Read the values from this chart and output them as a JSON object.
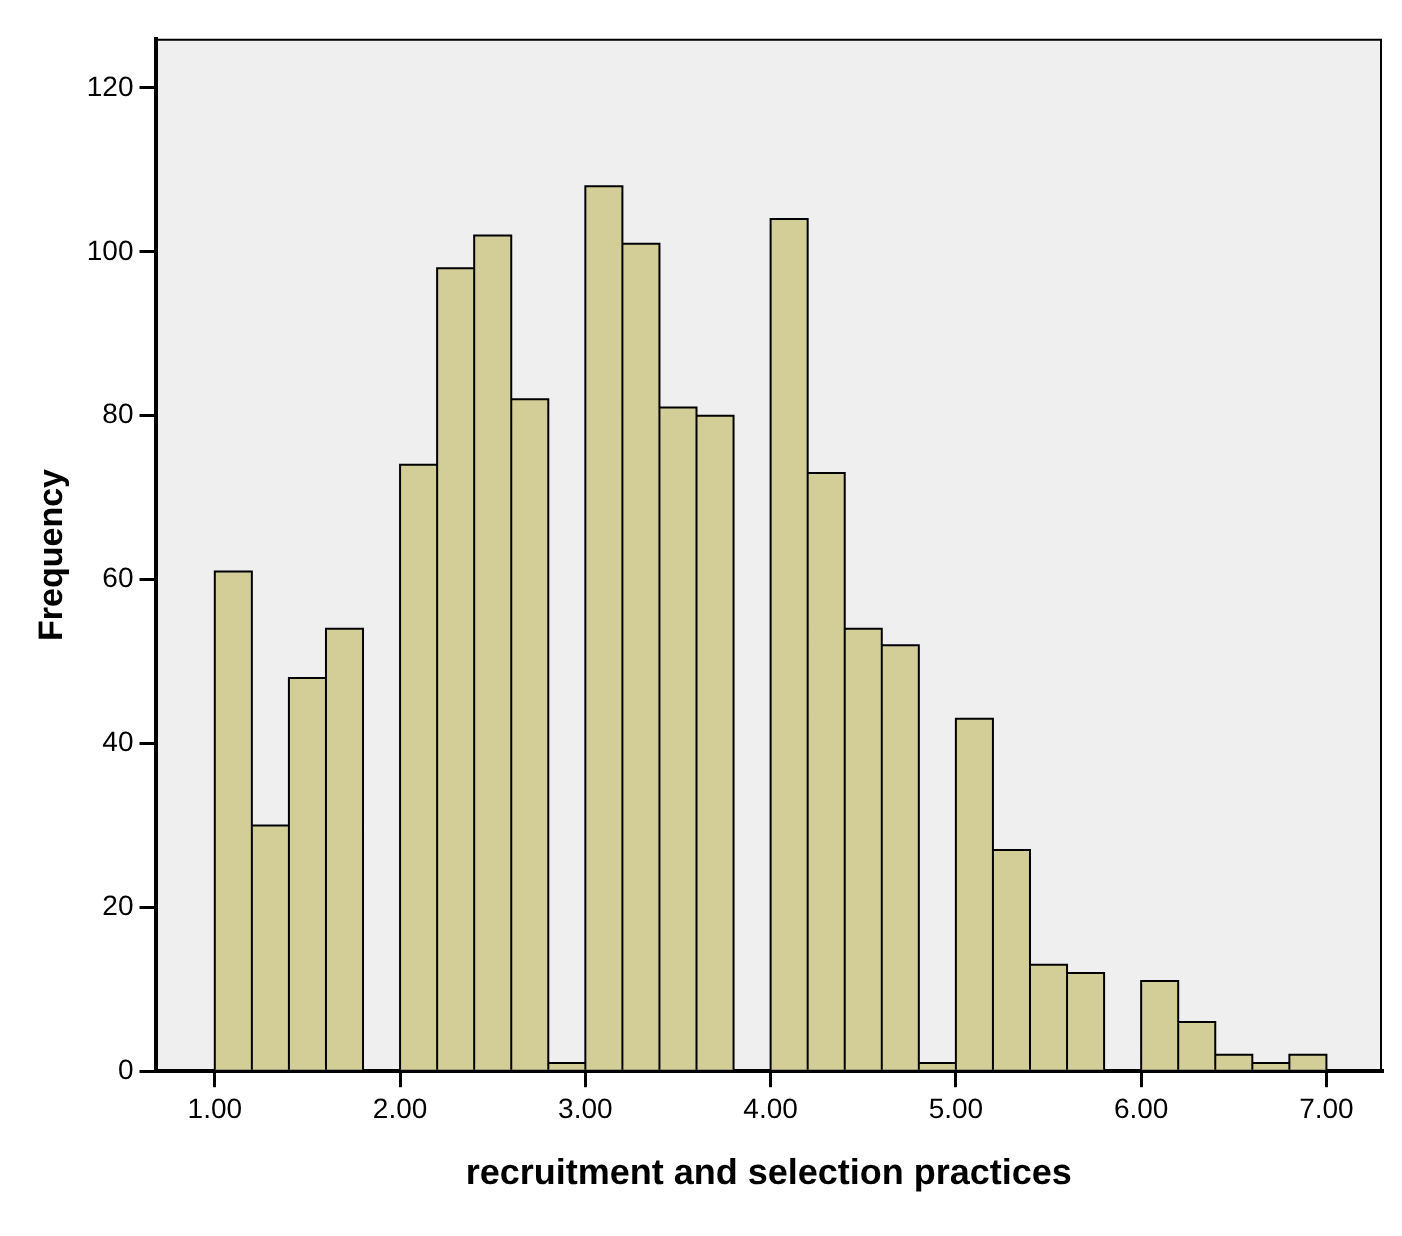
{
  "chart_data": {
    "type": "histogram",
    "xlabel": "recruitment and selection practices",
    "ylabel": "Frequency",
    "bins": [
      1.0,
      1.2,
      1.4,
      1.6,
      1.8,
      2.0,
      2.2,
      2.4,
      2.6,
      2.8,
      3.0,
      3.2,
      3.4,
      3.6,
      3.8,
      4.0,
      4.2,
      4.4,
      4.6,
      4.8,
      5.0,
      5.2,
      5.4,
      5.6,
      5.8,
      6.0,
      6.2,
      6.4,
      6.6,
      6.8,
      7.0
    ],
    "values": [
      61,
      30,
      48,
      54,
      0,
      74,
      98,
      102,
      82,
      1,
      108,
      101,
      81,
      80,
      0,
      104,
      73,
      54,
      52,
      1,
      43,
      27,
      13,
      12,
      0,
      11,
      6,
      2,
      1,
      2
    ],
    "color": "#d3ce97",
    "xlim": [
      0.68,
      7.3
    ],
    "ylim": [
      0,
      126
    ],
    "xticks": [
      {
        "value": 1,
        "label": "1.00"
      },
      {
        "value": 2,
        "label": "2.00"
      },
      {
        "value": 3,
        "label": "3.00"
      },
      {
        "value": 4,
        "label": "4.00"
      },
      {
        "value": 5,
        "label": "5.00"
      },
      {
        "value": 6,
        "label": "6.00"
      },
      {
        "value": 7,
        "label": "7.00"
      }
    ],
    "yticks": [
      0,
      20,
      40,
      60,
      80,
      100,
      120
    ],
    "grid": false,
    "legend": false
  }
}
